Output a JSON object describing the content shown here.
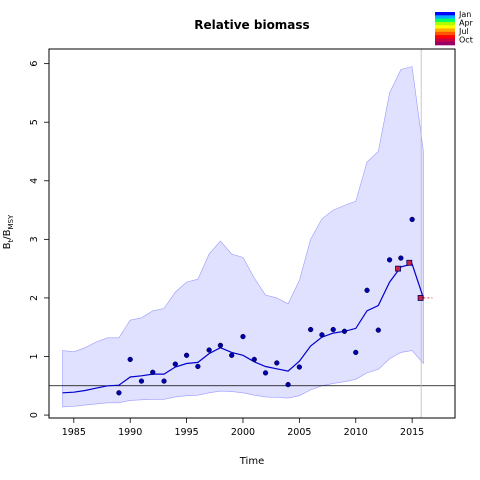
{
  "chart_data": {
    "type": "line",
    "title": "Relative biomass",
    "xlabel": "Time",
    "ylabel_main": "B",
    "ylabel_sub1": "t",
    "ylabel_mid": "/B",
    "ylabel_sub2": "MSY",
    "xlim": [
      1982.8,
      2018.8
    ],
    "ylim": [
      -0.05,
      6.25
    ],
    "x_ticks": [
      1985,
      1990,
      1995,
      2000,
      2005,
      2010,
      2015
    ],
    "y_ticks": [
      0,
      1,
      2,
      3,
      4,
      5,
      6
    ],
    "reference_line_y": 0.5,
    "vertical_line_x": 2015.8,
    "series": [
      {
        "type": "band",
        "x": [
          1984,
          1985,
          1986,
          1987,
          1988,
          1989,
          1990,
          1991,
          1992,
          1993,
          1994,
          1995,
          1996,
          1997,
          1998,
          1999,
          2000,
          2001,
          2002,
          2003,
          2004,
          2005,
          2006,
          2007,
          2008,
          2009,
          2010,
          2011,
          2012,
          2013,
          2014,
          2015,
          2016
        ],
        "upper": [
          1.1,
          1.08,
          1.15,
          1.25,
          1.32,
          1.32,
          1.62,
          1.66,
          1.78,
          1.82,
          2.1,
          2.27,
          2.32,
          2.75,
          2.97,
          2.75,
          2.69,
          2.34,
          2.05,
          2.0,
          1.9,
          2.3,
          3.0,
          3.35,
          3.5,
          3.58,
          3.65,
          4.32,
          4.5,
          5.5,
          5.9,
          5.95,
          4.5
        ],
        "lower": [
          0.14,
          0.15,
          0.17,
          0.19,
          0.21,
          0.21,
          0.25,
          0.26,
          0.27,
          0.27,
          0.31,
          0.33,
          0.34,
          0.38,
          0.41,
          0.4,
          0.38,
          0.34,
          0.31,
          0.3,
          0.29,
          0.33,
          0.43,
          0.5,
          0.54,
          0.57,
          0.61,
          0.72,
          0.78,
          0.96,
          1.07,
          1.1,
          0.88
        ]
      },
      {
        "type": "line",
        "x": [
          1984,
          1985,
          1986,
          1987,
          1988,
          1989,
          1990,
          1991,
          1992,
          1993,
          1994,
          1995,
          1996,
          1997,
          1998,
          1999,
          2000,
          2001,
          2002,
          2003,
          2004,
          2005,
          2006,
          2007,
          2008,
          2009,
          2010,
          2011,
          2012,
          2013,
          2014,
          2015,
          2016
        ],
        "y": [
          0.38,
          0.39,
          0.42,
          0.46,
          0.5,
          0.51,
          0.65,
          0.67,
          0.7,
          0.7,
          0.82,
          0.88,
          0.9,
          1.05,
          1.15,
          1.07,
          1.02,
          0.91,
          0.83,
          0.79,
          0.75,
          0.92,
          1.18,
          1.33,
          1.4,
          1.43,
          1.48,
          1.78,
          1.87,
          2.27,
          2.53,
          2.58,
          2.0
        ]
      },
      {
        "type": "scatter",
        "x": [
          1989,
          1990,
          1991,
          1992,
          1993,
          1994,
          1995,
          1996,
          1997,
          1998,
          1999,
          2000,
          2001,
          2002,
          2003,
          2004,
          2005,
          2006,
          2007,
          2008,
          2009,
          2010,
          2011,
          2012,
          2013,
          2014,
          2015
        ],
        "y": [
          0.38,
          0.95,
          0.58,
          0.73,
          0.58,
          0.87,
          1.02,
          0.83,
          1.11,
          1.19,
          1.02,
          1.34,
          0.95,
          0.72,
          0.89,
          0.52,
          0.82,
          1.46,
          1.37,
          1.46,
          1.43,
          1.07,
          2.13,
          1.45,
          2.65,
          2.68,
          3.34
        ]
      },
      {
        "type": "square-markers",
        "x": [
          2013.75,
          2014.75,
          2015.75
        ],
        "y": [
          2.5,
          2.6,
          2.0
        ]
      }
    ],
    "legend": {
      "placement": "top-right",
      "labels": [
        "Jan",
        "Apr",
        "Jul",
        "Oct"
      ],
      "colors": [
        "#0000ff",
        "#00aaff",
        "#00ff66",
        "#aaff00",
        "#ffff00",
        "#ffaa00",
        "#ff5500",
        "#ff0000",
        "#cc0044",
        "#990066"
      ]
    },
    "colors": {
      "band_fill": "#e0e0ff",
      "band_stroke": "#9a9aff",
      "line": "#0000cc",
      "points": "#0000aa",
      "square_fill": "#cc2244",
      "square_stroke": "#000066"
    }
  }
}
